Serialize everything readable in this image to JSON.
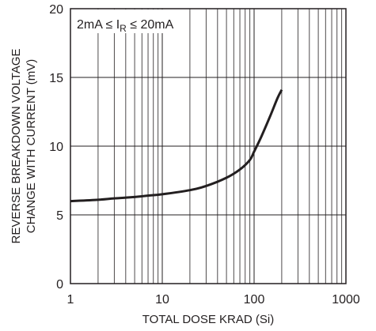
{
  "chart_data": {
    "type": "line",
    "xscale": "log",
    "xlim": [
      1,
      1000
    ],
    "ylim": [
      0,
      20
    ],
    "xticks": [
      1,
      10,
      100,
      1000
    ],
    "xtick_labels": [
      "1",
      "10",
      "100",
      "1000"
    ],
    "yticks": [
      0,
      5,
      10,
      15,
      20
    ],
    "ytick_labels": [
      "0",
      "5",
      "10",
      "15",
      "20"
    ],
    "xlabel": "TOTAL DOSE KRAD (Si)",
    "ylabel_lines": [
      "REVERSE BREAKDOWN VOLTAGE",
      "CHANGE WITH CURRENT (mV)"
    ],
    "annotation": {
      "prefix": "2mA ≤ I",
      "subscript": "R",
      "suffix": " ≤ 20mA"
    },
    "grid": true,
    "series": [
      {
        "x": [
          1,
          2,
          3,
          5,
          7,
          10,
          20,
          30,
          50,
          70,
          90,
          100,
          120,
          150,
          180,
          200
        ],
        "y": [
          6.0,
          6.1,
          6.2,
          6.3,
          6.4,
          6.5,
          6.8,
          7.1,
          7.7,
          8.3,
          9.0,
          9.6,
          10.7,
          12.2,
          13.5,
          14.1
        ]
      }
    ],
    "colors": {
      "line": "#231f20",
      "grid": "#231f20",
      "frame": "#231f20",
      "text": "#231f20"
    }
  }
}
